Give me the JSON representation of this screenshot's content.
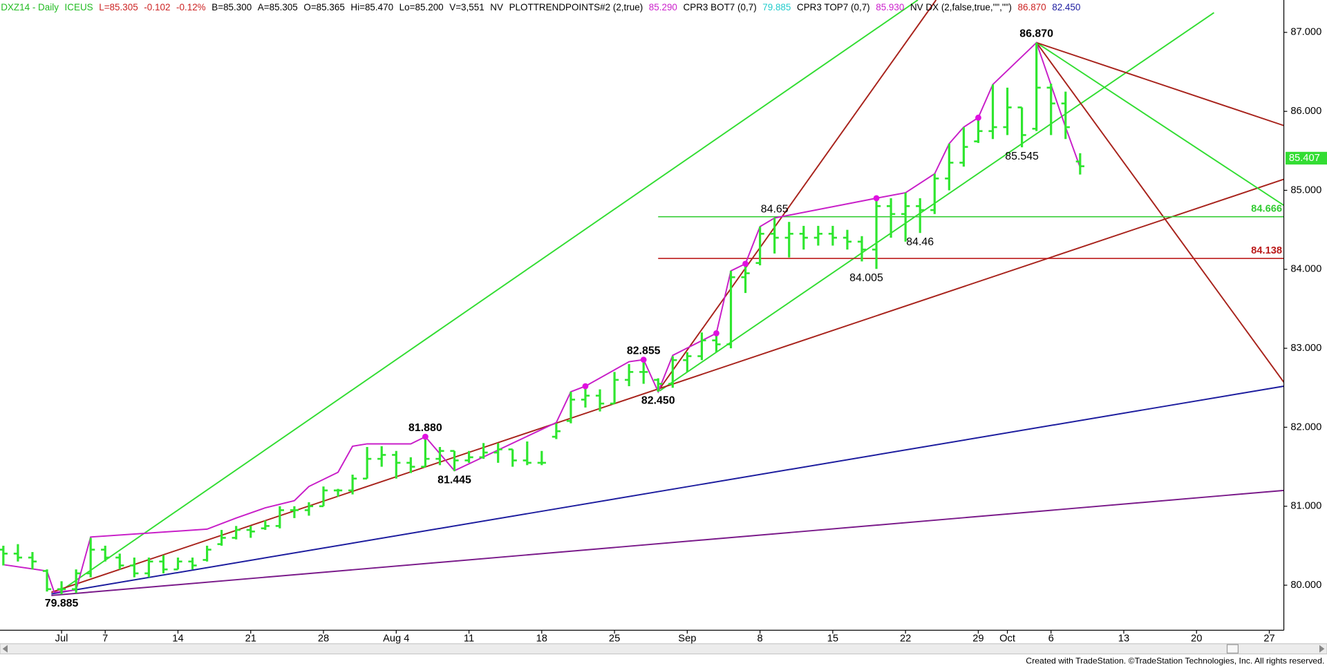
{
  "chart_data": {
    "type": "ohlc",
    "header": [
      {
        "text": "DXZ14 - Daily",
        "color": "#22bb22"
      },
      {
        "text": "ICEUS",
        "color": "#22bb22"
      },
      {
        "text": "L=85.305",
        "color": "#cc2222"
      },
      {
        "text": "-0.102",
        "color": "#cc2222"
      },
      {
        "text": "-0.12%",
        "color": "#cc2222"
      },
      {
        "text": "B=85.300",
        "color": "#000000"
      },
      {
        "text": "A=85.305",
        "color": "#000000"
      },
      {
        "text": "O=85.365",
        "color": "#000000"
      },
      {
        "text": "Hi=85.470",
        "color": "#000000"
      },
      {
        "text": "Lo=85.200",
        "color": "#000000"
      },
      {
        "text": "V=3,551",
        "color": "#000000"
      },
      {
        "text": "NV",
        "color": "#000000"
      },
      {
        "text": "PLOTTRENDPOINTS#2 (2,true)",
        "color": "#000000"
      },
      {
        "text": "85.290",
        "color": "#cc22cc"
      },
      {
        "text": "CPR3 BOT7 (0,7)",
        "color": "#000000"
      },
      {
        "text": "79.885",
        "color": "#22cccc"
      },
      {
        "text": "CPR3 TOP7 (0,7)",
        "color": "#000000"
      },
      {
        "text": "85.930",
        "color": "#cc22cc"
      },
      {
        "text": "NV DX (2,false,true,\"\",\"\")",
        "color": "#000000"
      },
      {
        "text": "86.870",
        "color": "#cc2222"
      },
      {
        "text": "82.450",
        "color": "#1c1ca0"
      }
    ],
    "footer": "Created with TradeStation. ©TradeStation Technologies, Inc. All rights reserved.",
    "color": "#2fe62f",
    "x": [
      0,
      1,
      2,
      3,
      4,
      5,
      6,
      7,
      8,
      9,
      10,
      11,
      12,
      13,
      14,
      15,
      16,
      17,
      18,
      19,
      20,
      21,
      22,
      23,
      24,
      25,
      26,
      27,
      28,
      29,
      30,
      31,
      32,
      33,
      34,
      35,
      36,
      37,
      38,
      39,
      40,
      41,
      42,
      43,
      44,
      45,
      46,
      47,
      48,
      49,
      50,
      51,
      52,
      53,
      54,
      55,
      56,
      57,
      58,
      59,
      60,
      61,
      62,
      63,
      64,
      65,
      66,
      67,
      68,
      69,
      70,
      71,
      72,
      73,
      74
    ],
    "open": [
      80.45,
      80.4,
      80.35,
      80.18,
      79.95,
      79.95,
      80.15,
      80.45,
      80.35,
      80.25,
      80.15,
      80.3,
      80.2,
      80.3,
      80.32,
      80.52,
      80.6,
      80.7,
      80.72,
      80.75,
      80.95,
      80.95,
      81.0,
      81.2,
      81.2,
      81.35,
      81.6,
      81.65,
      81.55,
      81.5,
      81.6,
      81.7,
      81.58,
      81.62,
      81.68,
      81.72,
      81.58,
      81.55,
      81.88,
      82.08,
      82.35,
      82.4,
      82.3,
      82.6,
      82.7,
      82.6,
      82.55,
      82.85,
      82.9,
      83.1,
      83.05,
      83.9,
      84.08,
      84.45,
      84.4,
      84.45,
      84.4,
      84.45,
      84.4,
      84.35,
      84.25,
      84.8,
      84.7,
      84.8,
      84.75,
      85.15,
      85.35,
      85.62,
      85.75,
      85.8,
      86.05,
      85.78,
      86.3,
      86.1,
      85.365
    ],
    "high": [
      80.5,
      80.52,
      80.42,
      80.2,
      80.05,
      80.2,
      80.6,
      80.5,
      80.4,
      80.35,
      80.35,
      80.38,
      80.35,
      80.35,
      80.5,
      80.7,
      80.75,
      80.75,
      80.82,
      81.0,
      81.0,
      81.05,
      81.25,
      81.22,
      81.4,
      81.75,
      81.76,
      81.7,
      81.62,
      81.88,
      81.75,
      81.7,
      81.7,
      81.8,
      81.8,
      81.72,
      81.82,
      81.7,
      82.05,
      82.45,
      82.52,
      82.48,
      82.7,
      82.8,
      82.855,
      82.62,
      82.9,
      82.95,
      83.2,
      83.2,
      83.98,
      84.07,
      84.54,
      84.65,
      84.6,
      84.55,
      84.55,
      84.55,
      84.5,
      84.42,
      84.9,
      84.9,
      84.97,
      84.9,
      85.21,
      85.59,
      85.8,
      85.92,
      86.34,
      86.3,
      86.05,
      86.87,
      86.35,
      86.25,
      85.47
    ],
    "low": [
      80.25,
      80.3,
      80.2,
      79.92,
      79.885,
      79.9,
      80.1,
      80.3,
      80.2,
      80.1,
      80.1,
      80.15,
      80.2,
      80.2,
      80.3,
      80.5,
      80.58,
      80.6,
      80.7,
      80.72,
      80.85,
      80.88,
      81.0,
      81.12,
      81.15,
      81.35,
      81.5,
      81.35,
      81.42,
      81.5,
      81.52,
      81.445,
      81.55,
      81.6,
      81.55,
      81.5,
      81.52,
      81.52,
      81.85,
      82.05,
      82.25,
      82.2,
      82.3,
      82.52,
      82.55,
      82.45,
      82.5,
      82.7,
      82.85,
      82.95,
      83.0,
      83.7,
      84.05,
      84.2,
      84.15,
      84.25,
      84.3,
      84.3,
      84.25,
      84.1,
      84.005,
      84.4,
      84.35,
      84.46,
      84.7,
      85.0,
      85.3,
      85.6,
      85.65,
      85.7,
      85.545,
      85.75,
      85.7,
      85.65,
      85.2
    ],
    "close": [
      80.4,
      80.35,
      80.3,
      79.95,
      79.95,
      80.15,
      80.45,
      80.35,
      80.25,
      80.15,
      80.3,
      80.2,
      80.3,
      80.25,
      80.45,
      80.6,
      80.7,
      80.68,
      80.75,
      80.95,
      80.95,
      81.0,
      81.2,
      81.2,
      81.35,
      81.6,
      81.65,
      81.55,
      81.5,
      81.6,
      81.7,
      81.58,
      81.62,
      81.68,
      81.72,
      81.58,
      81.55,
      81.55,
      81.95,
      82.35,
      82.4,
      82.3,
      82.6,
      82.7,
      82.7,
      82.55,
      82.85,
      82.9,
      83.1,
      83.05,
      83.9,
      83.95,
      84.45,
      84.4,
      84.45,
      84.4,
      84.45,
      84.4,
      84.35,
      84.25,
      84.8,
      84.7,
      84.8,
      84.75,
      85.15,
      85.35,
      85.55,
      85.75,
      85.8,
      86.05,
      85.7,
      86.3,
      86.1,
      85.8,
      85.305
    ],
    "swing_line": {
      "color": "#c81ec8",
      "x": [
        0,
        3,
        3.5,
        5,
        6,
        14,
        16,
        18,
        20,
        21,
        23,
        24,
        25,
        28,
        29,
        31,
        38,
        39,
        40,
        43,
        44,
        45,
        46,
        49,
        50,
        51,
        52,
        53,
        60,
        62,
        64,
        65,
        66,
        67,
        68,
        71,
        73,
        74
      ],
      "values": [
        80.26,
        80.18,
        79.91,
        79.94,
        80.61,
        80.71,
        80.85,
        80.98,
        81.07,
        81.25,
        81.43,
        81.76,
        81.79,
        81.79,
        81.88,
        81.45,
        82.06,
        82.45,
        82.52,
        82.83,
        82.855,
        82.45,
        82.91,
        83.19,
        83.98,
        84.07,
        84.54,
        84.65,
        84.9,
        84.97,
        85.21,
        85.59,
        85.8,
        85.92,
        86.34,
        86.87,
        85.8,
        85.29
      ]
    },
    "swing_points": {
      "color": "#e010e0",
      "x": [
        29,
        40,
        44,
        49,
        51,
        60,
        67
      ],
      "values": [
        81.88,
        82.52,
        82.855,
        83.19,
        84.07,
        84.9,
        85.92
      ]
    },
    "trendlines": [
      {
        "color": "#33dd33",
        "x": [
          3.8,
          62.85
        ],
        "values": [
          79.91,
          87.41
        ]
      },
      {
        "color": "#33dd33",
        "x": [
          45.1,
          83.2
        ],
        "values": [
          82.46,
          87.25
        ]
      },
      {
        "color": "#a8231c",
        "x": [
          45,
          64.1
        ],
        "values": [
          82.46,
          87.41
        ]
      },
      {
        "color": "#a8231c",
        "x": [
          3.3,
          88
        ],
        "values": [
          79.91,
          85.14
        ]
      },
      {
        "color": "#1c1c9e",
        "x": [
          3.3,
          88
        ],
        "values": [
          79.89,
          82.52
        ]
      },
      {
        "color": "#7a1a8a",
        "x": [
          3.3,
          88
        ],
        "values": [
          79.87,
          81.2
        ]
      },
      {
        "color": "#a8231c",
        "x": [
          71,
          88
        ],
        "values": [
          86.87,
          82.57
        ]
      },
      {
        "color": "#33dd33",
        "x": [
          71,
          88
        ],
        "values": [
          86.87,
          84.81
        ]
      },
      {
        "color": "#a8231c",
        "x": [
          71,
          88
        ],
        "values": [
          86.87,
          85.82
        ]
      }
    ],
    "levels": [
      {
        "value": 84.666,
        "color": "#33cc33",
        "x": [
          45,
          88
        ]
      },
      {
        "value": 84.138,
        "color": "#bb1a1a",
        "x": [
          45,
          88
        ]
      }
    ],
    "last_price": {
      "value": 85.407,
      "color": "#33dd33"
    },
    "annotations": [
      {
        "value": 86.87,
        "label": "86.870",
        "x": 71,
        "pos": "above",
        "bold": true
      },
      {
        "value": 84.65,
        "x": 53,
        "pos": "above",
        "bold": false
      },
      {
        "value": 84.46,
        "x": 63,
        "pos": "below",
        "bold": false
      },
      {
        "value": 84.005,
        "x": 60,
        "pos": "below-left",
        "bold": false
      },
      {
        "value": 85.545,
        "x": 70,
        "pos": "below",
        "bold": false
      },
      {
        "value": 82.855,
        "x": 44,
        "pos": "above",
        "bold": true
      },
      {
        "value": 82.45,
        "label": "82.450",
        "x": 45,
        "pos": "below",
        "bold": true
      },
      {
        "value": 81.88,
        "label": "81.880",
        "x": 29,
        "pos": "above",
        "bold": true
      },
      {
        "value": 81.445,
        "x": 31,
        "pos": "below",
        "bold": true
      },
      {
        "value": 79.885,
        "x": 4,
        "pos": "below",
        "bold": true
      }
    ],
    "xlim": [
      -0.23,
      88
    ],
    "xticks": [
      {
        "value": 4,
        "label": "Jul"
      },
      {
        "value": 7,
        "label": "7"
      },
      {
        "value": 12,
        "label": "14"
      },
      {
        "value": 17,
        "label": "21"
      },
      {
        "value": 22,
        "label": "28"
      },
      {
        "value": 27,
        "label": "Aug 4"
      },
      {
        "value": 32,
        "label": "11"
      },
      {
        "value": 37,
        "label": "18"
      },
      {
        "value": 42,
        "label": "25"
      },
      {
        "value": 47,
        "label": "Sep"
      },
      {
        "value": 52,
        "label": "8"
      },
      {
        "value": 57,
        "label": "15"
      },
      {
        "value": 62,
        "label": "22"
      },
      {
        "value": 67,
        "label": "29"
      },
      {
        "value": 69,
        "label": "Oct"
      },
      {
        "value": 72,
        "label": "6"
      },
      {
        "value": 77,
        "label": "13"
      },
      {
        "value": 82,
        "label": "20"
      },
      {
        "value": 87,
        "label": "27"
      }
    ],
    "ylim": [
      79.43,
      87.41
    ],
    "yticks": [
      {
        "value": 80,
        "label": "80.000"
      },
      {
        "value": 81,
        "label": "81.000"
      },
      {
        "value": 82,
        "label": "82.000"
      },
      {
        "value": 83,
        "label": "83.000"
      },
      {
        "value": 84,
        "label": "84.000"
      },
      {
        "value": 85,
        "label": "85.000"
      },
      {
        "value": 86,
        "label": "86.000"
      },
      {
        "value": 87,
        "label": "87.000"
      }
    ]
  }
}
